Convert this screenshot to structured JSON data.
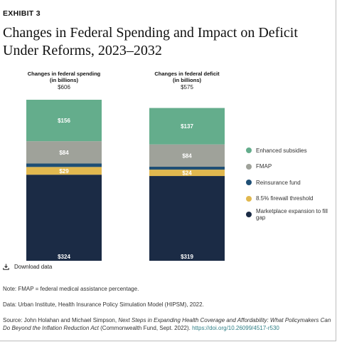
{
  "header": {
    "exhibit_label": "EXHIBIT 3",
    "title": "Changes in Federal Spending and Impact on Deficit Under Reforms, 2023–2032"
  },
  "chart_data": {
    "type": "bar",
    "stacked": true,
    "unit": "billions",
    "categories": [
      "Changes in federal spending (in billions)",
      "Changes in federal deficit (in billions)"
    ],
    "category_labels": [
      {
        "line1": "Changes in federal spending",
        "line2": "(in billions)",
        "total_label": "$606"
      },
      {
        "line1": "Changes in federal deficit",
        "line2": "(in billions)",
        "total_label": "$575"
      }
    ],
    "totals": [
      606,
      575
    ],
    "series": [
      {
        "name": "Marketplace expansion to fill gap",
        "color": "#1b2b45",
        "values": [
          324,
          319
        ],
        "labels": [
          "$324",
          "$319"
        ]
      },
      {
        "name": "8.5% firewall threshold",
        "color": "#e1b84f",
        "values": [
          29,
          24
        ],
        "labels": [
          "$29",
          "$24"
        ]
      },
      {
        "name": "Reinsurance fund",
        "color": "#1f4f75",
        "values": [
          13,
          11
        ],
        "labels": [
          "",
          ""
        ]
      },
      {
        "name": "FMAP",
        "color": "#9fa29a",
        "values": [
          84,
          84
        ],
        "labels": [
          "$84",
          "$84"
        ]
      },
      {
        "name": "Enhanced subsidies",
        "color": "#64ad8c",
        "values": [
          156,
          137
        ],
        "labels": [
          "$156",
          "$137"
        ]
      }
    ],
    "legend_position": "right",
    "legend_order": [
      "Enhanced subsidies",
      "FMAP",
      "Reinsurance fund",
      "8.5% firewall threshold",
      "Marketplace expansion to fill gap"
    ],
    "grid": false
  },
  "download": {
    "label": "Download data",
    "icon": "download-icon"
  },
  "notes": {
    "note": "Note: FMAP = federal medical assistance percentage.",
    "data": "Data: Urban Institute, Health Insurance Policy Simulation Model (HIPSM), 2022.",
    "source_prefix": "Source: John Holahan and Michael Simpson, ",
    "source_title": "Next Steps in Expanding Health Coverage and Affordability: What Policymakers Can Do Beyond the Inflation Reduction Act",
    "source_suffix": " (Commonwealth Fund, Sept. 2022). ",
    "source_link": "https://doi.org/10.26099/4517-r530"
  }
}
